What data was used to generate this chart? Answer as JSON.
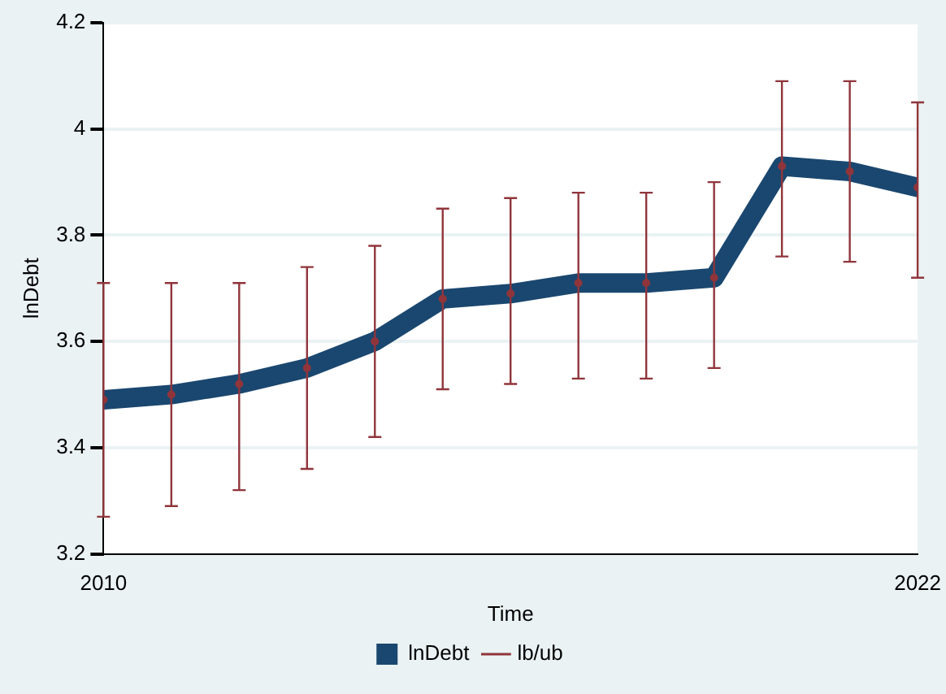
{
  "chart_data": {
    "type": "line",
    "xlabel": "Time",
    "ylabel": "lnDebt",
    "x": [
      2010,
      2011,
      2012,
      2013,
      2014,
      2015,
      2016,
      2017,
      2018,
      2019,
      2020,
      2021,
      2022
    ],
    "series": [
      {
        "name": "lnDebt",
        "color": "#1a476f",
        "values": [
          3.49,
          3.5,
          3.52,
          3.55,
          3.6,
          3.68,
          3.69,
          3.71,
          3.71,
          3.72,
          3.93,
          3.92,
          3.89
        ]
      },
      {
        "name": "lb/ub",
        "type": "scatter",
        "marker": "circle",
        "color": "#90353b",
        "values": [
          3.49,
          3.5,
          3.52,
          3.55,
          3.6,
          3.68,
          3.69,
          3.71,
          3.71,
          3.72,
          3.93,
          3.92,
          3.89
        ],
        "errors": [
          [
            3.27,
            3.71
          ],
          [
            3.29,
            3.71
          ],
          [
            3.32,
            3.71
          ],
          [
            3.36,
            3.74
          ],
          [
            3.42,
            3.78
          ],
          [
            3.51,
            3.85
          ],
          [
            3.52,
            3.87
          ],
          [
            3.53,
            3.88
          ],
          [
            3.53,
            3.88
          ],
          [
            3.55,
            3.9
          ],
          [
            3.76,
            4.09
          ],
          [
            3.75,
            4.09
          ],
          [
            3.72,
            4.05
          ]
        ]
      }
    ],
    "xlim": [
      2010,
      2022
    ],
    "xticks": [
      2010,
      2022
    ],
    "ylim": [
      3.2,
      4.2
    ],
    "yticks": [
      3.2,
      3.4,
      3.6,
      3.8,
      4,
      4.2
    ],
    "grid": "y",
    "legend": "bottom"
  }
}
